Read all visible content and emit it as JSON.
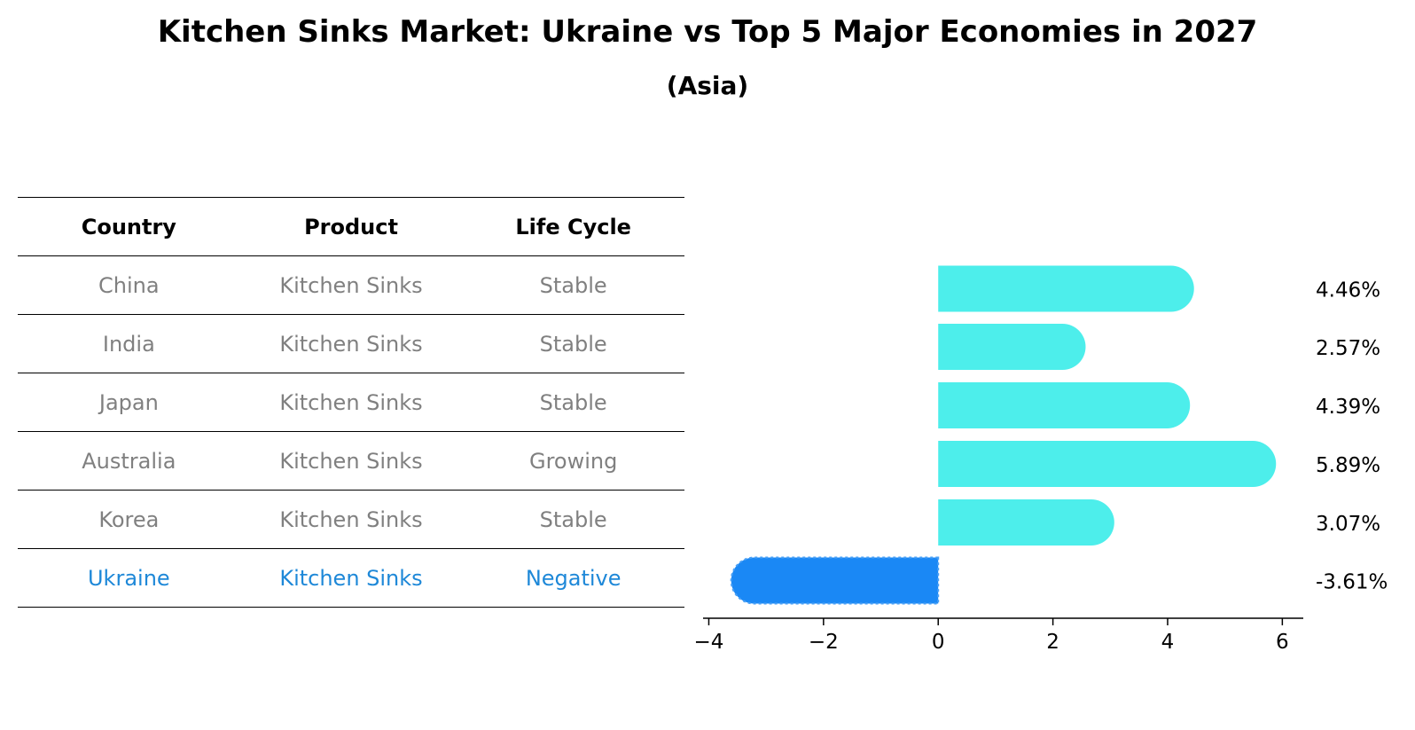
{
  "title": "Kitchen Sinks Market: Ukraine vs Top 5 Major Economies in 2027",
  "subtitle": "(Asia)",
  "table": {
    "headers": [
      "Country",
      "Product",
      "Life Cycle"
    ],
    "rows": [
      [
        "China",
        "Kitchen Sinks",
        "Stable"
      ],
      [
        "India",
        "Kitchen Sinks",
        "Stable"
      ],
      [
        "Japan",
        "Kitchen Sinks",
        "Stable"
      ],
      [
        "Australia",
        "Kitchen Sinks",
        "Growing"
      ],
      [
        "Korea",
        "Kitchen Sinks",
        "Stable"
      ],
      [
        "Ukraine",
        "Kitchen Sinks",
        "Negative"
      ]
    ]
  },
  "chart_data": {
    "type": "bar",
    "orientation": "horizontal",
    "categories": [
      "China",
      "India",
      "Japan",
      "Australia",
      "Korea",
      "Ukraine"
    ],
    "values": [
      4.46,
      2.57,
      4.39,
      5.89,
      3.07,
      -3.61
    ],
    "value_labels": [
      "4.46%",
      "2.57%",
      "4.39%",
      "5.89%",
      "3.07%",
      "-3.61%"
    ],
    "xlim": [
      -4.1,
      6.35
    ],
    "xticks": [
      -4,
      -2,
      0,
      2,
      4,
      6
    ],
    "xtick_labels": [
      "−4",
      "−2",
      "0",
      "2",
      "4",
      "6"
    ],
    "colors": {
      "positive": "#4ded eb",
      "negative": "#1e88f5"
    }
  }
}
